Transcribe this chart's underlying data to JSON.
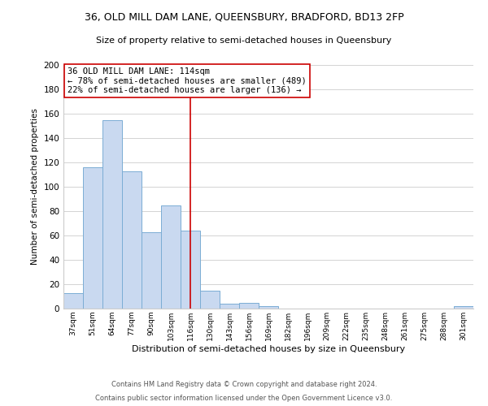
{
  "title1": "36, OLD MILL DAM LANE, QUEENSBURY, BRADFORD, BD13 2FP",
  "title2": "Size of property relative to semi-detached houses in Queensbury",
  "xlabel": "Distribution of semi-detached houses by size in Queensbury",
  "ylabel": "Number of semi-detached properties",
  "footer1": "Contains HM Land Registry data © Crown copyright and database right 2024.",
  "footer2": "Contains public sector information licensed under the Open Government Licence v3.0.",
  "bar_labels": [
    "37sqm",
    "51sqm",
    "64sqm",
    "77sqm",
    "90sqm",
    "103sqm",
    "116sqm",
    "130sqm",
    "143sqm",
    "156sqm",
    "169sqm",
    "182sqm",
    "196sqm",
    "209sqm",
    "222sqm",
    "235sqm",
    "248sqm",
    "261sqm",
    "275sqm",
    "288sqm",
    "301sqm"
  ],
  "bar_values": [
    13,
    116,
    155,
    113,
    63,
    85,
    64,
    15,
    4,
    5,
    2,
    0,
    0,
    0,
    0,
    0,
    0,
    0,
    0,
    0,
    2
  ],
  "bar_color": "#c9d9f0",
  "bar_edge_color": "#7badd4",
  "reference_line_index": 6,
  "reference_line_color": "#cc0000",
  "annotation_title": "36 OLD MILL DAM LANE: 114sqm",
  "annotation_line1": "← 78% of semi-detached houses are smaller (489)",
  "annotation_line2": "22% of semi-detached houses are larger (136) →",
  "annotation_box_color": "#ffffff",
  "annotation_box_edge_color": "#cc0000",
  "ylim": [
    0,
    200
  ],
  "yticks": [
    0,
    20,
    40,
    60,
    80,
    100,
    120,
    140,
    160,
    180,
    200
  ],
  "background_color": "#ffffff",
  "grid_color": "#cccccc"
}
